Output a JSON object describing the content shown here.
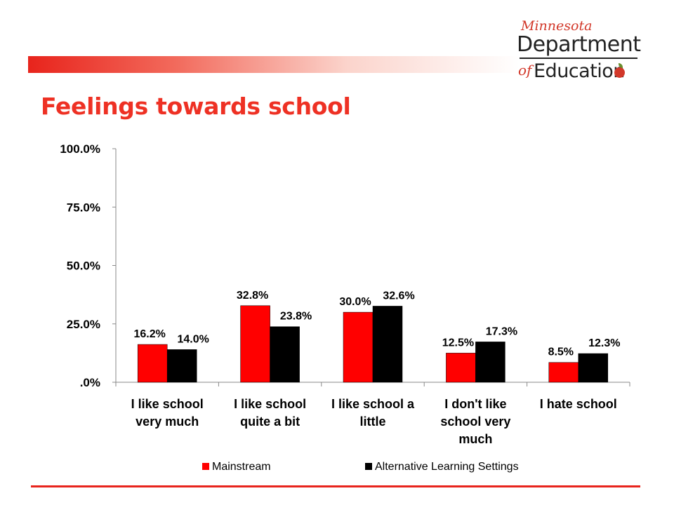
{
  "page": {
    "title": "Feelings towards school",
    "logo": {
      "script": "Minnesota",
      "line1": "Department",
      "of": "of",
      "line2": "Education"
    }
  },
  "chart_data": {
    "type": "bar",
    "title": "",
    "xlabel": "",
    "ylabel": "",
    "ylim": [
      0,
      100
    ],
    "yticks": [
      ".0%",
      "25.0%",
      "50.0%",
      "75.0%",
      "100.0%"
    ],
    "categories": [
      [
        "I like school",
        "very much"
      ],
      [
        "I like school",
        "quite a bit"
      ],
      [
        "I like school a",
        "little"
      ],
      [
        "I don't like",
        "school very",
        "much"
      ],
      [
        "I hate school"
      ]
    ],
    "series": [
      {
        "name": "Mainstream",
        "color": "#ff0000",
        "values": [
          16.2,
          32.8,
          30.0,
          12.5,
          8.5
        ],
        "labels": [
          "16.2%",
          "32.8%",
          "30.0%",
          "12.5%",
          "8.5%"
        ]
      },
      {
        "name": "Alternative Learning Settings",
        "color": "#000000",
        "values": [
          14.0,
          23.8,
          32.6,
          17.3,
          12.3
        ],
        "labels": [
          "14.0%",
          "23.8%",
          "32.6%",
          "17.3%",
          "12.3%"
        ]
      }
    ],
    "legend": "bottom",
    "grid": false
  }
}
